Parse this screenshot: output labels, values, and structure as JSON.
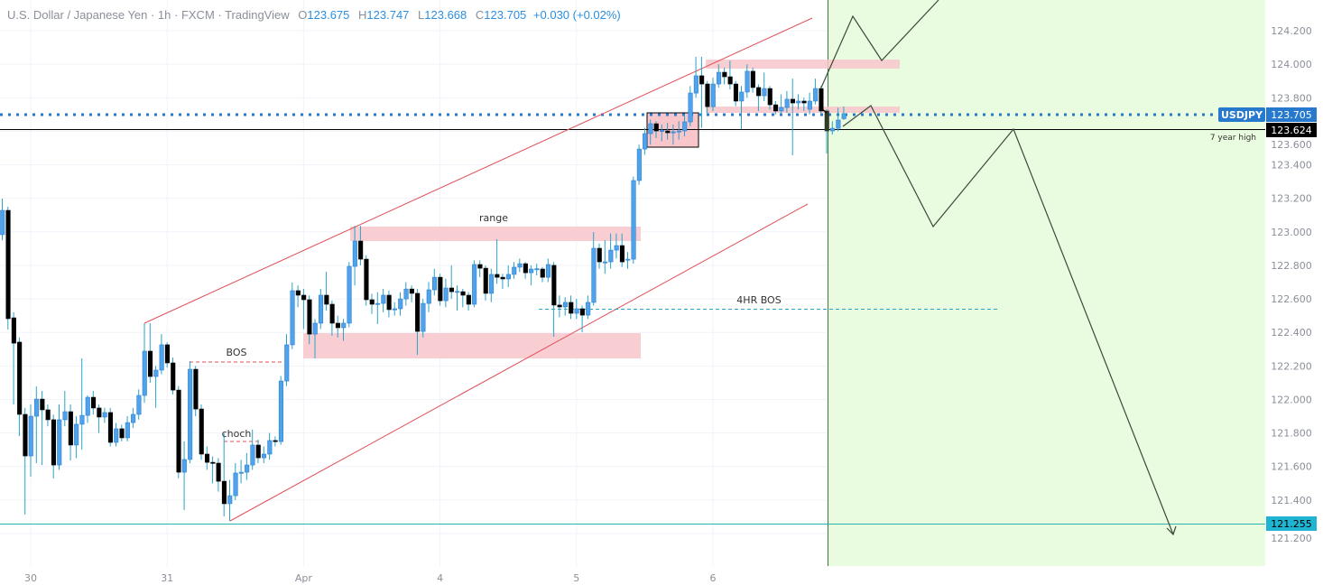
{
  "header": {
    "title": "U.S. Dollar / Japanese Yen · 1h · FXCM · TradingView",
    "ohlc": {
      "o_label": "O",
      "o": "123.675",
      "h_label": "H",
      "h": "123.747",
      "l_label": "L",
      "l": "123.668",
      "c_label": "C",
      "c": "123.705",
      "change": "+0.030 (+0.02%)"
    }
  },
  "colors": {
    "up": "#4fa3ea",
    "up_border": "#2f7fd1",
    "down": "#000000",
    "wick": "#2aa3c6",
    "channel": "#e0505a",
    "zone": "#f8c6cb",
    "forecast_area": "#e9fce0",
    "symbol_tag": "#2679cc",
    "price_tag_dark": "#131722",
    "target_tag": "#1fb4d2"
  },
  "price_tags": {
    "symbol": "USDJPY",
    "last": "123.705",
    "level": "123.624",
    "target": "121.255"
  },
  "annotations": {
    "range": "range",
    "bos": "BOS",
    "choch": "choch",
    "hr4_bos": "4HR BOS",
    "seven_year_high": "7 year high"
  },
  "chart_data": {
    "type": "candlestick",
    "title": "U.S. Dollar / Japanese Yen · 1h · FXCM · TradingView",
    "ylim": [
      121.0,
      124.35
    ],
    "y_ticks": [
      "121.200",
      "121.400",
      "121.600",
      "121.800",
      "122.000",
      "122.200",
      "122.400",
      "122.600",
      "122.800",
      "123.000",
      "123.200",
      "123.400",
      "123.600",
      "123.800",
      "124.000",
      "124.200"
    ],
    "x_ticks": [
      {
        "label": "30",
        "index": 5
      },
      {
        "label": "31",
        "index": 29
      },
      {
        "label": "Apr",
        "index": 53
      },
      {
        "label": "4",
        "index": 77
      },
      {
        "label": "5",
        "index": 101
      },
      {
        "label": "6",
        "index": 125
      }
    ],
    "grid": true,
    "candles_ohlc": [
      [
        122.983,
        123.198,
        122.95,
        123.128
      ],
      [
        123.128,
        123.15,
        122.417,
        122.482
      ],
      [
        122.487,
        122.52,
        121.97,
        122.336
      ],
      [
        122.342,
        122.37,
        121.782,
        121.911
      ],
      [
        121.911,
        121.95,
        121.313,
        121.663
      ],
      [
        121.663,
        121.97,
        121.539,
        121.9
      ],
      [
        121.9,
        122.078,
        121.62,
        122.002
      ],
      [
        122.002,
        122.051,
        121.609,
        121.938
      ],
      [
        121.938,
        121.97,
        121.84,
        121.879
      ],
      [
        121.879,
        121.91,
        121.528,
        121.609
      ],
      [
        121.609,
        121.97,
        121.58,
        121.879
      ],
      [
        121.879,
        122.051,
        121.84,
        121.927
      ],
      [
        121.927,
        121.97,
        121.636,
        121.728
      ],
      [
        121.728,
        121.9,
        121.65,
        121.852
      ],
      [
        121.852,
        122.245,
        121.7,
        121.905
      ],
      [
        121.905,
        122.024,
        121.86,
        122.013
      ],
      [
        122.013,
        122.051,
        121.91,
        121.949
      ],
      [
        121.949,
        121.97,
        121.8,
        121.895
      ],
      [
        121.895,
        121.95,
        121.86,
        121.922
      ],
      [
        121.922,
        121.95,
        121.72,
        121.744
      ],
      [
        121.744,
        121.86,
        121.72,
        121.825
      ],
      [
        121.825,
        121.85,
        121.75,
        121.771
      ],
      [
        121.771,
        121.9,
        121.75,
        121.862
      ],
      [
        121.862,
        121.95,
        121.83,
        121.911
      ],
      [
        121.911,
        122.06,
        121.88,
        122.024
      ],
      [
        122.024,
        122.455,
        121.98,
        122.288
      ],
      [
        122.288,
        122.455,
        122.1,
        122.137
      ],
      [
        122.137,
        122.2,
        121.95,
        122.175
      ],
      [
        122.175,
        122.39,
        122.15,
        122.326
      ],
      [
        122.326,
        122.34,
        122.19,
        122.218
      ],
      [
        122.218,
        122.25,
        122.03,
        122.056
      ],
      [
        122.056,
        122.08,
        121.53,
        121.566
      ],
      [
        121.566,
        121.75,
        121.34,
        121.642
      ],
      [
        121.642,
        122.229,
        121.62,
        122.18
      ],
      [
        122.18,
        122.2,
        121.9,
        121.943
      ],
      [
        121.943,
        121.97,
        121.64,
        121.674
      ],
      [
        121.674,
        121.72,
        121.58,
        121.625
      ],
      [
        121.625,
        121.66,
        121.5,
        121.62
      ],
      [
        121.62,
        121.65,
        121.45,
        121.512
      ],
      [
        121.512,
        121.8,
        121.302,
        121.378
      ],
      [
        121.378,
        121.52,
        121.275,
        121.426
      ],
      [
        121.426,
        121.62,
        121.4,
        121.561
      ],
      [
        121.561,
        121.64,
        121.5,
        121.566
      ],
      [
        121.566,
        121.68,
        121.52,
        121.609
      ],
      [
        121.609,
        121.82,
        121.58,
        121.728
      ],
      [
        121.728,
        121.76,
        121.62,
        121.652
      ],
      [
        121.652,
        121.72,
        121.62,
        121.674
      ],
      [
        121.674,
        121.8,
        121.64,
        121.755
      ],
      [
        121.755,
        121.78,
        121.72,
        121.749
      ],
      [
        121.749,
        122.14,
        121.73,
        122.11
      ],
      [
        122.11,
        122.39,
        122.08,
        122.326
      ],
      [
        122.326,
        122.697,
        122.3,
        122.649
      ],
      [
        122.649,
        122.68,
        122.55,
        122.622
      ],
      [
        122.622,
        122.66,
        122.42,
        122.595
      ],
      [
        122.595,
        122.62,
        122.33,
        122.39
      ],
      [
        122.39,
        122.48,
        122.245,
        122.455
      ],
      [
        122.455,
        122.66,
        122.42,
        122.622
      ],
      [
        122.622,
        122.762,
        122.53,
        122.568
      ],
      [
        122.568,
        122.59,
        122.38,
        122.455
      ],
      [
        122.455,
        122.5,
        122.37,
        122.428
      ],
      [
        122.428,
        122.48,
        122.35,
        122.455
      ],
      [
        122.455,
        122.82,
        122.43,
        122.794
      ],
      [
        122.794,
        123.036,
        122.68,
        122.945
      ],
      [
        122.945,
        123.036,
        122.8,
        122.837
      ],
      [
        122.837,
        122.86,
        122.56,
        122.595
      ],
      [
        122.595,
        122.63,
        122.51,
        122.568
      ],
      [
        122.568,
        122.64,
        122.45,
        122.573
      ],
      [
        122.573,
        122.66,
        122.52,
        122.622
      ],
      [
        122.622,
        122.65,
        122.49,
        122.536
      ],
      [
        122.536,
        122.58,
        122.5,
        122.541
      ],
      [
        122.541,
        122.64,
        122.5,
        122.6
      ],
      [
        122.6,
        122.7,
        122.56,
        122.659
      ],
      [
        122.659,
        122.68,
        122.58,
        122.633
      ],
      [
        122.633,
        122.66,
        122.266,
        122.406
      ],
      [
        122.406,
        122.6,
        122.37,
        122.573
      ],
      [
        122.573,
        122.7,
        122.52,
        122.654
      ],
      [
        122.654,
        122.78,
        122.62,
        122.729
      ],
      [
        122.729,
        122.75,
        122.56,
        122.589
      ],
      [
        122.589,
        122.72,
        122.55,
        122.665
      ],
      [
        122.665,
        122.8,
        122.6,
        122.643
      ],
      [
        122.643,
        122.68,
        122.53,
        122.645
      ],
      [
        122.643,
        122.66,
        122.55,
        122.622
      ],
      [
        122.622,
        122.64,
        122.53,
        122.568
      ],
      [
        122.568,
        122.83,
        122.55,
        122.805
      ],
      [
        122.805,
        122.83,
        122.73,
        122.783
      ],
      [
        122.783,
        122.8,
        122.59,
        122.633
      ],
      [
        122.633,
        122.78,
        122.58,
        122.746
      ],
      [
        122.746,
        122.956,
        122.69,
        122.729
      ],
      [
        122.729,
        122.75,
        122.66,
        122.719
      ],
      [
        122.719,
        122.8,
        122.67,
        122.746
      ],
      [
        122.746,
        122.82,
        122.72,
        122.789
      ],
      [
        122.789,
        122.84,
        122.76,
        122.81
      ],
      [
        122.81,
        122.82,
        122.72,
        122.756
      ],
      [
        122.756,
        122.8,
        122.68,
        122.778
      ],
      [
        122.778,
        122.81,
        122.74,
        122.78
      ],
      [
        122.778,
        122.79,
        122.7,
        122.729
      ],
      [
        122.729,
        122.84,
        122.7,
        122.805
      ],
      [
        122.8,
        122.82,
        122.374,
        122.563
      ],
      [
        122.563,
        122.62,
        122.49,
        122.552
      ],
      [
        122.552,
        122.61,
        122.5,
        122.579
      ],
      [
        122.579,
        122.62,
        122.48,
        122.514
      ],
      [
        122.514,
        122.6,
        122.48,
        122.541
      ],
      [
        122.541,
        122.56,
        122.4,
        122.503
      ],
      [
        122.503,
        122.62,
        122.48,
        122.579
      ],
      [
        122.579,
        122.999,
        122.56,
        122.902
      ],
      [
        122.902,
        122.93,
        122.78,
        122.821
      ],
      [
        122.821,
        122.95,
        122.75,
        122.821
      ],
      [
        122.821,
        122.99,
        122.78,
        122.891
      ],
      [
        122.891,
        122.99,
        122.84,
        122.918
      ],
      [
        122.918,
        122.99,
        122.79,
        122.821
      ],
      [
        122.832,
        122.88,
        122.78,
        122.837
      ],
      [
        122.837,
        123.33,
        122.81,
        123.306
      ],
      [
        123.306,
        123.52,
        123.28,
        123.494
      ],
      [
        123.494,
        123.62,
        123.46,
        123.586
      ],
      [
        123.586,
        123.67,
        123.52,
        123.645
      ],
      [
        123.645,
        123.66,
        123.56,
        123.602
      ],
      [
        123.602,
        123.64,
        123.54,
        123.605
      ],
      [
        123.602,
        123.65,
        123.55,
        123.591
      ],
      [
        123.591,
        123.64,
        123.52,
        123.597
      ],
      [
        123.597,
        123.66,
        123.55,
        123.602
      ],
      [
        123.602,
        123.7,
        123.57,
        123.656
      ],
      [
        123.656,
        123.87,
        123.63,
        123.828
      ],
      [
        123.828,
        124.044,
        123.8,
        123.931
      ],
      [
        123.931,
        124.044,
        123.62,
        123.882
      ],
      [
        123.882,
        123.9,
        123.7,
        123.747
      ],
      [
        123.747,
        123.92,
        123.72,
        123.882
      ],
      [
        123.882,
        124.0,
        123.86,
        123.952
      ],
      [
        123.952,
        123.98,
        123.88,
        123.925
      ],
      [
        123.925,
        124.02,
        123.85,
        123.882
      ],
      [
        123.882,
        123.9,
        123.75,
        123.78
      ],
      [
        123.78,
        123.87,
        123.613,
        123.834
      ],
      [
        123.834,
        124.0,
        123.8,
        123.958
      ],
      [
        123.958,
        123.98,
        123.83,
        123.861
      ],
      [
        123.861,
        123.88,
        123.72,
        123.812
      ],
      [
        123.812,
        123.95,
        123.78,
        123.855
      ],
      [
        123.855,
        123.87,
        123.73,
        123.758
      ],
      [
        123.758,
        123.78,
        123.7,
        123.721
      ],
      [
        123.721,
        123.82,
        123.7,
        123.742
      ],
      [
        123.742,
        123.84,
        123.71,
        123.791
      ],
      [
        123.791,
        123.914,
        123.457,
        123.769
      ],
      [
        123.769,
        123.82,
        123.73,
        123.78
      ],
      [
        123.78,
        123.8,
        123.72,
        123.769
      ],
      [
        123.731,
        123.83,
        123.7,
        123.78
      ],
      [
        123.78,
        123.914,
        123.76,
        123.855
      ],
      [
        123.855,
        123.87,
        123.7,
        123.721
      ],
      [
        123.721,
        123.73,
        123.467,
        123.602
      ],
      [
        123.602,
        123.66,
        123.58,
        123.618
      ],
      [
        123.618,
        123.74,
        123.6,
        123.667
      ],
      [
        123.675,
        123.747,
        123.668,
        123.705
      ]
    ]
  }
}
